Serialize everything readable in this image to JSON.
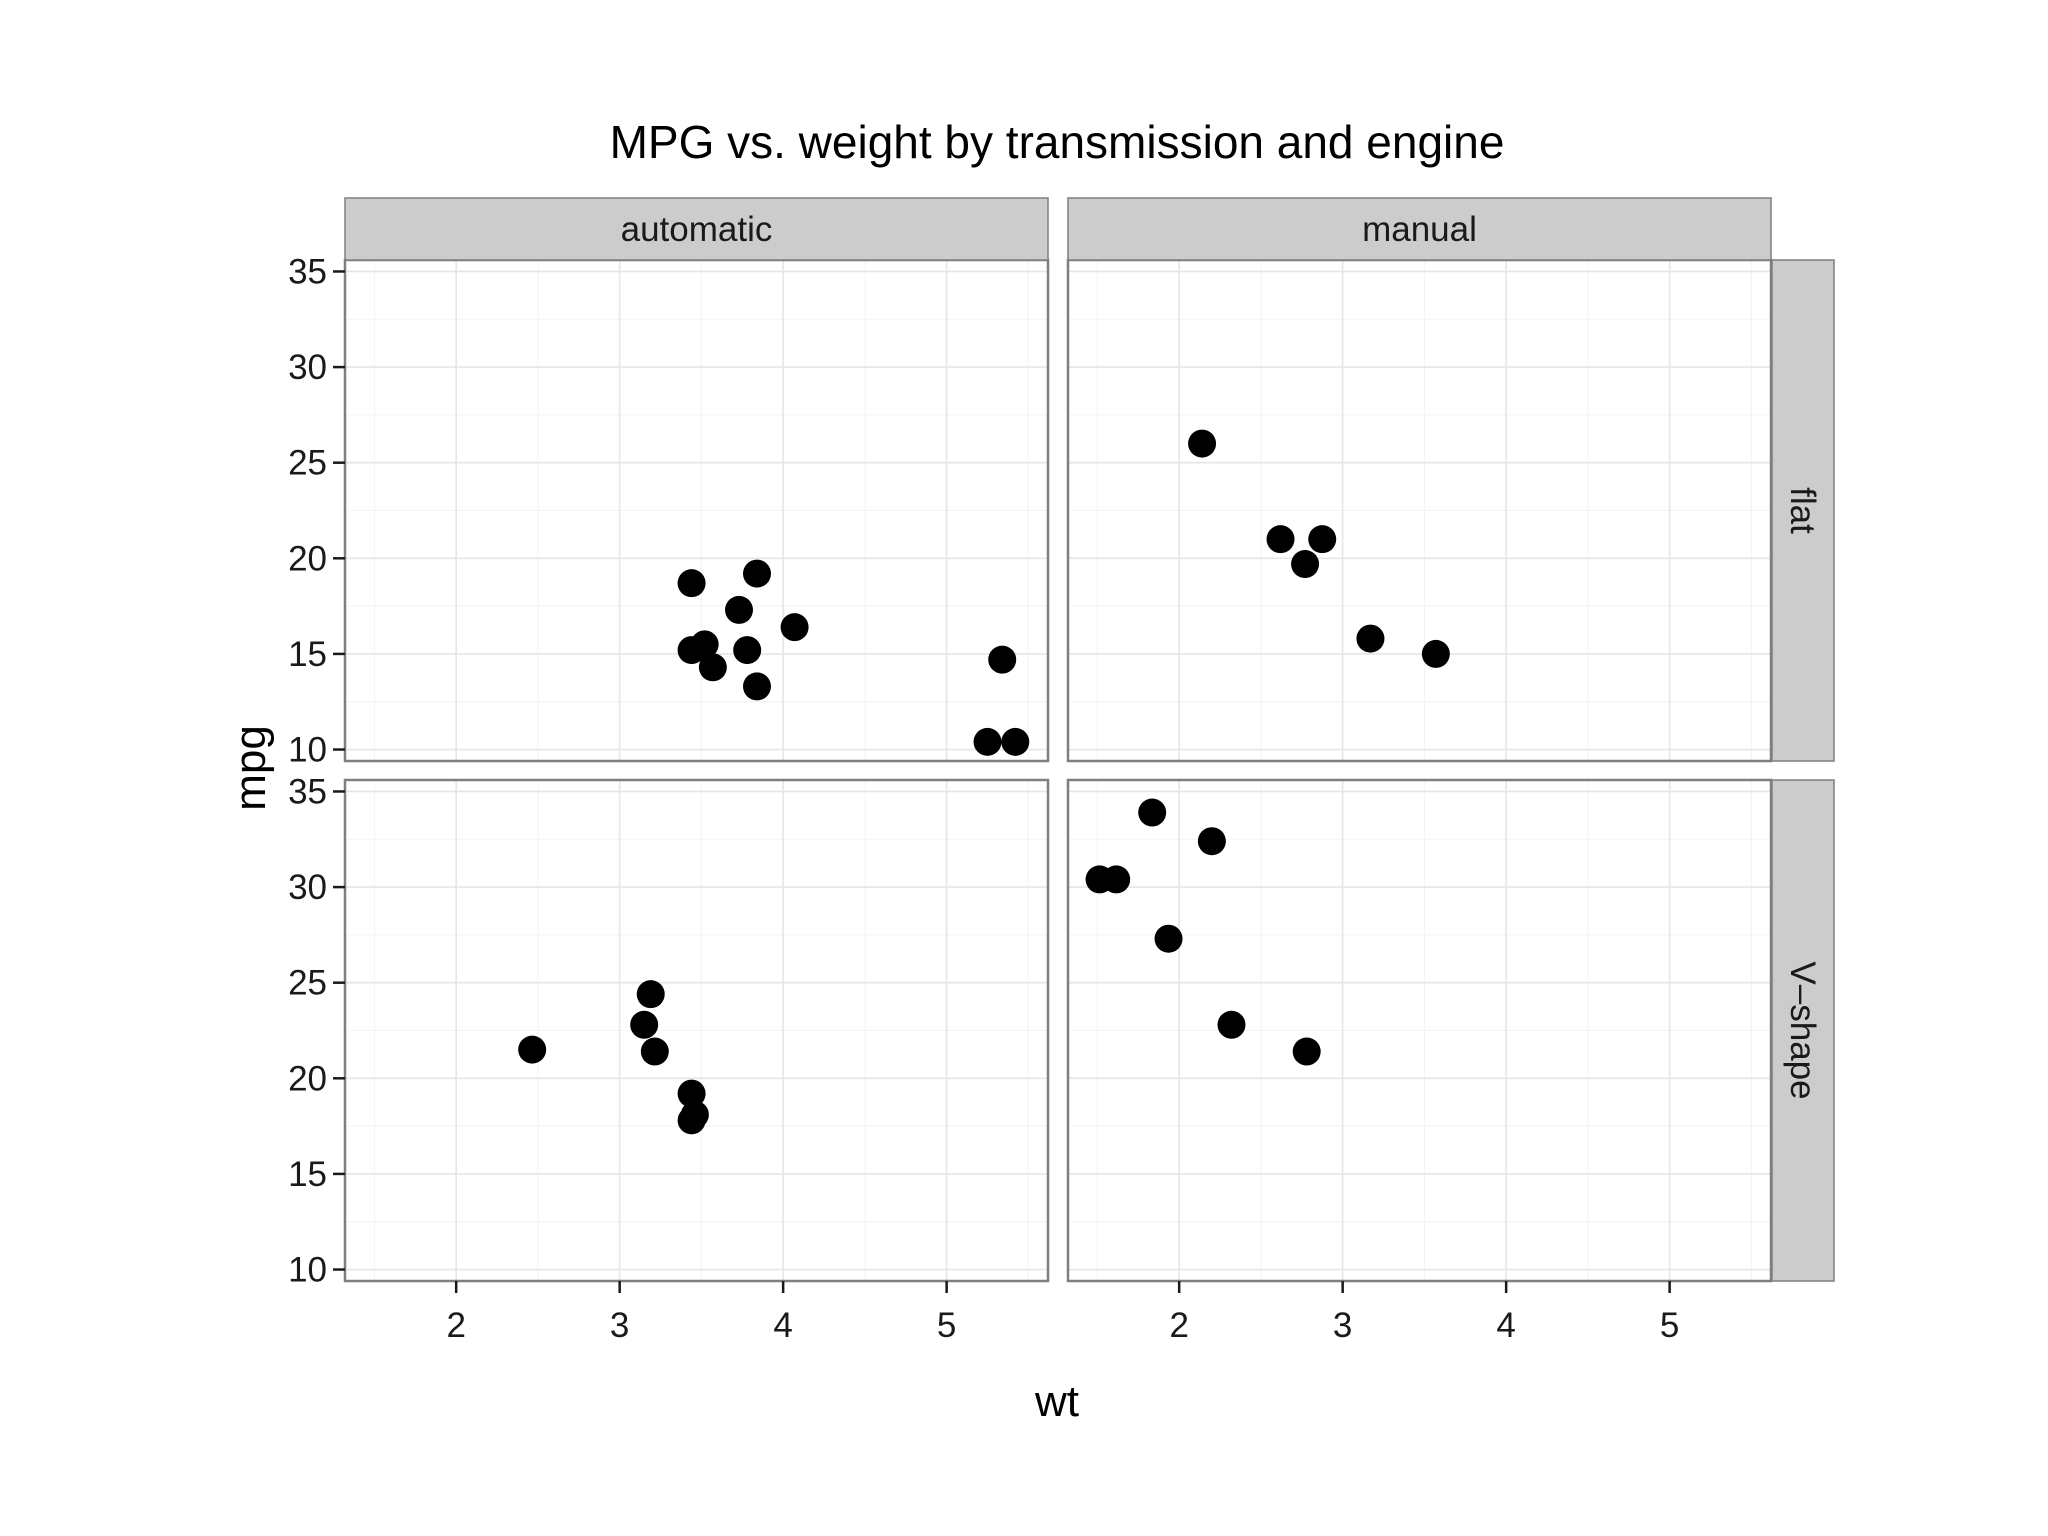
{
  "chart_data": {
    "type": "scatter",
    "title": "MPG vs. weight by transmission and engine",
    "xlabel": "wt",
    "ylabel": "mpg",
    "xlim": [
      1.32,
      5.62
    ],
    "ylim": [
      9.4,
      35.6
    ],
    "x_ticks": [
      2,
      3,
      4,
      5
    ],
    "y_ticks": [
      10,
      15,
      20,
      25,
      30,
      35
    ],
    "column_facets": [
      "automatic",
      "manual"
    ],
    "row_facets": [
      "flat",
      "V–shape"
    ],
    "panels": [
      {
        "column": "automatic",
        "row": "flat",
        "points": [
          {
            "x": 3.44,
            "y": 18.7
          },
          {
            "x": 3.84,
            "y": 19.2
          },
          {
            "x": 3.73,
            "y": 17.3
          },
          {
            "x": 4.07,
            "y": 16.4
          },
          {
            "x": 3.44,
            "y": 15.2
          },
          {
            "x": 3.52,
            "y": 15.5
          },
          {
            "x": 3.78,
            "y": 15.2
          },
          {
            "x": 3.57,
            "y": 14.3
          },
          {
            "x": 3.84,
            "y": 13.3
          },
          {
            "x": 5.34,
            "y": 14.7
          },
          {
            "x": 5.25,
            "y": 10.4
          },
          {
            "x": 5.42,
            "y": 10.4
          }
        ]
      },
      {
        "column": "manual",
        "row": "flat",
        "points": [
          {
            "x": 2.14,
            "y": 26.0
          },
          {
            "x": 2.62,
            "y": 21.0
          },
          {
            "x": 2.875,
            "y": 21.0
          },
          {
            "x": 2.77,
            "y": 19.7
          },
          {
            "x": 3.17,
            "y": 15.8
          },
          {
            "x": 3.57,
            "y": 15.0
          }
        ]
      },
      {
        "column": "automatic",
        "row": "V–shape",
        "points": [
          {
            "x": 2.465,
            "y": 21.5
          },
          {
            "x": 3.19,
            "y": 24.4
          },
          {
            "x": 3.15,
            "y": 22.8
          },
          {
            "x": 3.215,
            "y": 21.4
          },
          {
            "x": 3.44,
            "y": 19.2
          },
          {
            "x": 3.46,
            "y": 18.1
          },
          {
            "x": 3.44,
            "y": 17.8
          }
        ]
      },
      {
        "column": "manual",
        "row": "V–shape",
        "points": [
          {
            "x": 1.835,
            "y": 33.9
          },
          {
            "x": 2.2,
            "y": 32.4
          },
          {
            "x": 1.615,
            "y": 30.4
          },
          {
            "x": 1.513,
            "y": 30.4
          },
          {
            "x": 1.935,
            "y": 27.3
          },
          {
            "x": 2.32,
            "y": 22.8
          },
          {
            "x": 2.78,
            "y": 21.4
          }
        ]
      }
    ]
  }
}
